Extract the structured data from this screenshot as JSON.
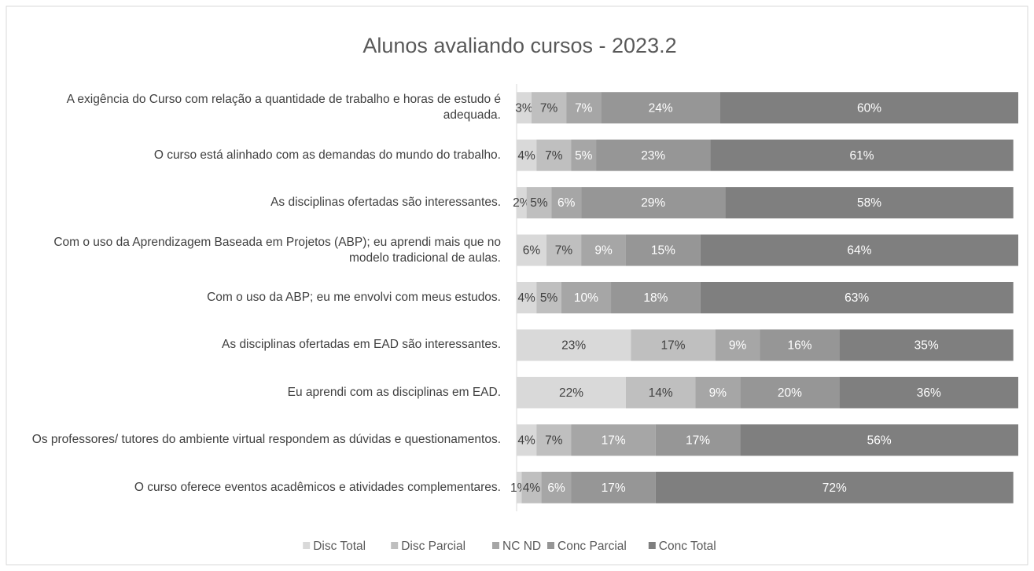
{
  "chart_data": {
    "type": "stacked_bar_horizontal",
    "title": "Alunos avaliando cursos - 2023.2",
    "categories": [
      "A exigência do Curso com relação a quantidade de trabalho e horas de estudo é adequada.",
      "O curso está alinhado com as demandas do mundo do trabalho.",
      "As disciplinas ofertadas são interessantes.",
      "Com o uso da Aprendizagem Baseada em Projetos (ABP); eu aprendi mais que no modelo tradicional de aulas.",
      "Com o uso da ABP; eu me envolvi com meus estudos.",
      "As disciplinas ofertadas em EAD são interessantes.",
      "Eu aprendi com as disciplinas em EAD.",
      "Os professores/ tutores do ambiente virtual respondem as dúvidas e questionamentos.",
      "O curso oferece eventos acadêmicos e atividades complementares."
    ],
    "series": [
      {
        "name": "Disc Total",
        "color": "#d9d9d9",
        "values": [
          3,
          4,
          2,
          6,
          4,
          23,
          22,
          4,
          1
        ],
        "value_labels": [
          "3%",
          "4%",
          "2%",
          "6%",
          "4%",
          "23%",
          "22%",
          "4%",
          "1%"
        ]
      },
      {
        "name": "Disc Parcial",
        "color": "#bfbfbf",
        "values": [
          7,
          7,
          5,
          7,
          5,
          17,
          14,
          7,
          4
        ],
        "value_labels": [
          "7%",
          "7%",
          "5%",
          "7%",
          "5%",
          "17%",
          "14%",
          "7%",
          "4%"
        ]
      },
      {
        "name": "NC ND",
        "color": "#a6a6a6",
        "values": [
          7,
          5,
          6,
          9,
          10,
          9,
          9,
          17,
          6
        ],
        "value_labels": [
          "7%",
          "5%",
          "6%",
          "9%",
          "10%",
          "9%",
          "9%",
          "17%",
          "6%"
        ]
      },
      {
        "name": "Conc Parcial",
        "color": "#969696",
        "values": [
          24,
          23,
          29,
          15,
          18,
          16,
          20,
          17,
          17
        ],
        "value_labels": [
          "24%",
          "23%",
          "29%",
          "15%",
          "18%",
          "16%",
          "20%",
          "17%",
          "17%"
        ]
      },
      {
        "name": "Conc Total",
        "color": "#7f7f7f",
        "values": [
          60,
          61,
          58,
          64,
          63,
          35,
          36,
          56,
          72
        ],
        "value_labels": [
          "60%",
          "61%",
          "58%",
          "64%",
          "63%",
          "35%",
          "36%",
          "56%",
          "72%"
        ]
      }
    ],
    "xlim": [
      0,
      101
    ],
    "legend": "bottom"
  }
}
